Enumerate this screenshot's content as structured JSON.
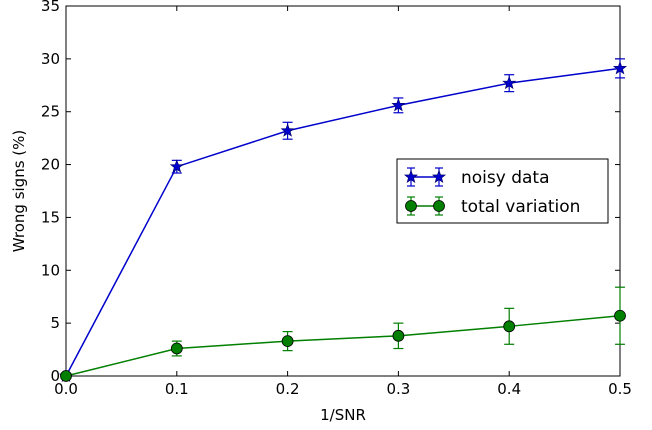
{
  "chart_data": {
    "type": "line",
    "title": "",
    "xlabel": "1/SNR",
    "ylabel": "Wrong signs (%)",
    "xlim": [
      0.0,
      0.5
    ],
    "ylim": [
      0,
      35
    ],
    "x_ticks": [
      "0.0",
      "0.1",
      "0.2",
      "0.3",
      "0.4",
      "0.5"
    ],
    "y_ticks": [
      "0",
      "5",
      "10",
      "15",
      "20",
      "25",
      "30",
      "35"
    ],
    "grid": false,
    "legend_position": "center-right",
    "x": [
      0.0,
      0.1,
      0.2,
      0.3,
      0.4,
      0.5
    ],
    "series": [
      {
        "name": "noisy data",
        "color": "#0000cc",
        "marker": "star",
        "values": [
          0.0,
          19.8,
          23.2,
          25.6,
          27.7,
          29.1
        ],
        "errors": [
          0.0,
          0.6,
          0.8,
          0.7,
          0.8,
          0.9
        ]
      },
      {
        "name": "total variation",
        "color": "#007f00",
        "marker": "circle",
        "values": [
          0.0,
          2.6,
          3.3,
          3.8,
          4.7,
          5.7
        ],
        "errors": [
          0.0,
          0.7,
          0.9,
          1.2,
          1.7,
          2.7
        ]
      }
    ]
  }
}
